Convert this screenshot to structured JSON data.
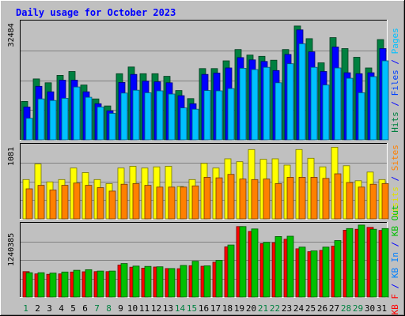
{
  "chart_data": {
    "type": "bar",
    "title": "Daily usage for October 2023",
    "categories": [
      "1",
      "2",
      "3",
      "4",
      "5",
      "6",
      "7",
      "8",
      "9",
      "10",
      "11",
      "12",
      "13",
      "14",
      "15",
      "16",
      "17",
      "18",
      "19",
      "20",
      "21",
      "22",
      "23",
      "24",
      "25",
      "26",
      "27",
      "28",
      "29",
      "30",
      "31"
    ],
    "weekend_days": [
      "1",
      "7",
      "8",
      "14",
      "15",
      "21",
      "22",
      "28",
      "29"
    ],
    "panels": [
      {
        "id": "hits",
        "ylabel_value": "32484",
        "ylabel_value_at": 32484,
        "ymax": 37000,
        "legend": [
          {
            "text": "Hits",
            "color": "#008040"
          },
          {
            "text": "/",
            "color": "#0000ff"
          },
          {
            "text": "Files",
            "color": "#0040ff"
          },
          {
            "text": "/",
            "color": "#0000ff"
          },
          {
            "text": "Pages",
            "color": "#00c0ff"
          }
        ],
        "series": [
          {
            "name": "Hits",
            "color": "#008040",
            "values": [
              11900,
              18900,
              17700,
              20000,
              21200,
              17000,
              12700,
              10500,
              20500,
              22600,
              20500,
              20500,
              19700,
              15300,
              12800,
              22100,
              22100,
              24500,
              28000,
              26300,
              25900,
              24700,
              28000,
              35300,
              31400,
              23900,
              31700,
              28300,
              25600,
              22300,
              31100
            ]
          },
          {
            "name": "Files",
            "color": "#0000ff",
            "values": [
              10200,
              16600,
              14900,
              18500,
              18500,
              14900,
              11200,
              9000,
              17800,
              20300,
              18200,
              18000,
              17700,
              13700,
              11200,
              20300,
              20700,
              22300,
              25500,
              24800,
              24300,
              21500,
              26500,
              34100,
              27300,
              21200,
              28800,
              20800,
              20500,
              20800,
              28300
            ]
          },
          {
            "name": "Pages",
            "color": "#00c0ff",
            "values": [
              6700,
              12700,
              12200,
              12900,
              16400,
              13200,
              10200,
              8200,
              14500,
              15400,
              14600,
              15200,
              14200,
              9900,
              9500,
              15300,
              15200,
              15900,
              22200,
              21800,
              22500,
              17700,
              23600,
              29800,
              22500,
              17000,
              22300,
              19100,
              14600,
              19600,
              24500
            ]
          }
        ]
      },
      {
        "id": "visits",
        "ylabel_value": "1081",
        "ylabel_value_at": 1081,
        "ymax": 1300,
        "legend": [
          {
            "text": "Visits",
            "color": "#e0e000"
          },
          {
            "text": "/",
            "color": "#0000ff"
          },
          {
            "text": "Sites",
            "color": "#ff8000"
          }
        ],
        "series": [
          {
            "name": "Visits",
            "color": "#ffff00",
            "values": [
              680,
              950,
              640,
              680,
              880,
              800,
              680,
              610,
              880,
              910,
              880,
              900,
              910,
              560,
              680,
              960,
              880,
              1040,
              990,
              1200,
              1030,
              1040,
              930,
              1200,
              1050,
              900,
              1240,
              920,
              660,
              810,
              680
            ]
          },
          {
            "name": "Sites",
            "color": "#ff8000",
            "values": [
              520,
              580,
              500,
              580,
              620,
              580,
              540,
              480,
              600,
              610,
              580,
              550,
              550,
              550,
              570,
              720,
              710,
              770,
              690,
              680,
              690,
              610,
              720,
              720,
              720,
              700,
              780,
              630,
              550,
              600,
              610
            ]
          }
        ]
      },
      {
        "id": "kbytes",
        "ylabel_value": "1240385",
        "ylabel_value_at": 1240385,
        "ymax": 1940000,
        "legend": [
          {
            "text": "KB F",
            "color": "#ff0000"
          },
          {
            "text": "/",
            "color": "#0000ff"
          },
          {
            "text": "KB In",
            "color": "#0080ff"
          },
          {
            "text": "/",
            "color": "#0000ff"
          },
          {
            "text": "KB Out",
            "color": "#00c000"
          }
        ],
        "series": [
          {
            "name": "KB F",
            "color": "#ff0000",
            "values": [
              665000,
              605000,
              595000,
              605000,
              655000,
              660000,
              665000,
              665000,
              835000,
              780000,
              755000,
              785000,
              745000,
              740000,
              820000,
              805000,
              910000,
              1310000,
              1840000,
              1715000,
              1395000,
              1420000,
              1510000,
              1260000,
              1185000,
              1220000,
              1330000,
              1745000,
              1770000,
              1820000,
              1740000
            ]
          },
          {
            "name": "KB Out",
            "color": "#00c000",
            "values": [
              635000,
              635000,
              625000,
              655000,
              700000,
              715000,
              680000,
              680000,
              875000,
              810000,
              800000,
              790000,
              745000,
              825000,
              935000,
              815000,
              960000,
              1360000,
              1840000,
              1780000,
              1430000,
              1580000,
              1590000,
              1305000,
              1205000,
              1305000,
              1475000,
              1790000,
              1880000,
              1770000,
              1790000
            ]
          }
        ]
      }
    ]
  }
}
